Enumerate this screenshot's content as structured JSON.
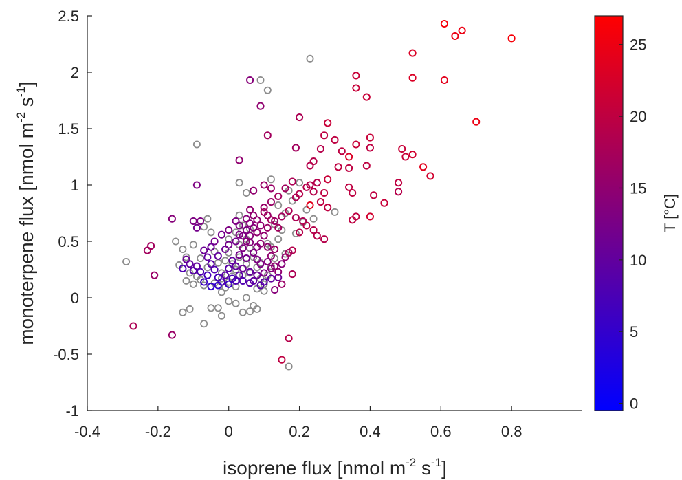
{
  "chart_data": {
    "type": "scatter",
    "title": "",
    "xlabel": {
      "main": "isoprene flux [nmol m",
      "sup1": "-2",
      "mid": " s",
      "sup2": "-1",
      "end": "]"
    },
    "ylabel": {
      "main": "monoterpene flux [nmol m",
      "sup1": "-2",
      "mid": " s",
      "sup2": "-1",
      "end": "]"
    },
    "xlim": [
      -0.4,
      1.0
    ],
    "ylim": [
      -1,
      2.5
    ],
    "xticks": [
      "-0.4",
      "-0.2",
      "0",
      "0.2",
      "0.4",
      "0.6",
      "0.8"
    ],
    "yticks": [
      "-1",
      "-0.5",
      "0",
      "0.5",
      "1",
      "1.5",
      "2",
      "2.5"
    ],
    "grid": false,
    "marker": "open-circle",
    "colorbar": {
      "label": "T [°C]",
      "range": [
        -0.5,
        27
      ],
      "ticks": [
        "0",
        "5",
        "10",
        "15",
        "20",
        "25"
      ],
      "colormap": [
        "#0000ff",
        "#ff0000"
      ]
    },
    "gray_color": "#8c8c8c",
    "points_no_temperature": [
      [
        -0.29,
        0.32
      ],
      [
        0.23,
        2.12
      ],
      [
        0.09,
        1.93
      ],
      [
        0.11,
        1.84
      ],
      [
        -0.09,
        1.36
      ],
      [
        0.17,
        -0.61
      ],
      [
        -0.07,
        -0.23
      ],
      [
        -0.02,
        -0.16
      ],
      [
        -0.13,
        -0.13
      ],
      [
        -0.11,
        -0.1
      ],
      [
        -0.05,
        -0.09
      ],
      [
        -0.03,
        -0.09
      ],
      [
        0.04,
        -0.13
      ],
      [
        0.06,
        -0.12
      ],
      [
        0.08,
        -0.1
      ],
      [
        0.07,
        -0.07
      ],
      [
        0.02,
        -0.05
      ],
      [
        0.0,
        -0.03
      ],
      [
        0.05,
        0.0
      ],
      [
        -0.15,
        0.5
      ],
      [
        -0.13,
        0.43
      ],
      [
        -0.1,
        0.47
      ],
      [
        -0.12,
        0.36
      ],
      [
        -0.14,
        0.29
      ],
      [
        -0.11,
        0.22
      ],
      [
        -0.12,
        0.15
      ],
      [
        -0.09,
        0.19
      ],
      [
        -0.1,
        0.12
      ],
      [
        -0.08,
        0.16
      ],
      [
        -0.07,
        0.11
      ],
      [
        -0.06,
        0.27
      ],
      [
        -0.08,
        0.35
      ],
      [
        -0.05,
        0.58
      ],
      [
        -0.06,
        0.7
      ],
      [
        -0.07,
        0.63
      ],
      [
        -0.04,
        0.41
      ],
      [
        -0.03,
        0.31
      ],
      [
        -0.02,
        0.22
      ],
      [
        -0.04,
        0.13
      ],
      [
        -0.02,
        0.05
      ],
      [
        -0.01,
        0.09
      ],
      [
        0.0,
        0.14
      ],
      [
        0.01,
        0.19
      ],
      [
        0.02,
        0.25
      ],
      [
        0.01,
        0.3
      ],
      [
        0.0,
        0.4
      ],
      [
        0.03,
        0.47
      ],
      [
        0.02,
        0.58
      ],
      [
        0.04,
        0.64
      ],
      [
        0.03,
        0.73
      ],
      [
        0.05,
        0.52
      ],
      [
        0.06,
        0.44
      ],
      [
        0.07,
        0.36
      ],
      [
        0.05,
        0.3
      ],
      [
        0.08,
        0.27
      ],
      [
        0.06,
        0.22
      ],
      [
        0.09,
        0.17
      ],
      [
        0.1,
        0.12
      ],
      [
        0.11,
        0.2
      ],
      [
        0.12,
        0.28
      ],
      [
        0.13,
        0.35
      ],
      [
        0.12,
        0.45
      ],
      [
        0.14,
        0.52
      ],
      [
        0.15,
        0.6
      ],
      [
        0.13,
        0.65
      ],
      [
        0.16,
        0.75
      ],
      [
        0.14,
        0.82
      ],
      [
        0.18,
        0.86
      ],
      [
        0.17,
        0.95
      ],
      [
        0.2,
        1.02
      ],
      [
        0.19,
        0.57
      ],
      [
        0.21,
        0.67
      ],
      [
        0.22,
        0.78
      ],
      [
        0.24,
        0.7
      ],
      [
        0.3,
        0.76
      ],
      [
        0.03,
        1.02
      ],
      [
        0.05,
        0.93
      ],
      [
        0.12,
        1.05
      ],
      [
        0.16,
        0.39
      ],
      [
        0.02,
        0.1
      ],
      [
        -0.01,
        0.33
      ],
      [
        0.04,
        0.2
      ],
      [
        0.0,
        0.52
      ],
      [
        0.08,
        0.08
      ],
      [
        0.1,
        0.06
      ],
      [
        -0.02,
        0.17
      ],
      [
        0.03,
        0.36
      ],
      [
        0.06,
        0.61
      ],
      [
        0.11,
        0.48
      ],
      [
        0.09,
        0.31
      ]
    ],
    "points": [
      [
        0.61,
        2.43,
        26
      ],
      [
        0.66,
        2.37,
        25
      ],
      [
        0.64,
        2.32,
        25
      ],
      [
        0.8,
        2.3,
        26
      ],
      [
        0.52,
        2.17,
        23
      ],
      [
        0.61,
        1.93,
        24
      ],
      [
        0.52,
        1.95,
        23
      ],
      [
        0.7,
        1.56,
        25
      ],
      [
        0.36,
        1.97,
        21
      ],
      [
        0.36,
        1.86,
        21
      ],
      [
        0.39,
        1.78,
        21
      ],
      [
        0.06,
        1.93,
        14
      ],
      [
        0.09,
        1.7,
        15
      ],
      [
        0.2,
        1.6,
        18
      ],
      [
        0.28,
        1.55,
        21
      ],
      [
        0.3,
        1.4,
        20
      ],
      [
        0.27,
        1.44,
        20
      ],
      [
        0.26,
        1.32,
        19
      ],
      [
        0.11,
        1.44,
        17
      ],
      [
        0.19,
        1.33,
        17
      ],
      [
        0.34,
        1.25,
        23
      ],
      [
        0.32,
        1.3,
        20
      ],
      [
        0.36,
        1.36,
        21
      ],
      [
        0.4,
        1.42,
        21
      ],
      [
        0.4,
        1.33,
        20
      ],
      [
        0.49,
        1.32,
        21
      ],
      [
        0.5,
        1.25,
        21
      ],
      [
        0.52,
        1.27,
        22
      ],
      [
        0.55,
        1.16,
        24
      ],
      [
        0.57,
        1.08,
        22
      ],
      [
        0.03,
        1.22,
        15
      ],
      [
        0.23,
        1.17,
        19
      ],
      [
        0.24,
        1.21,
        19
      ],
      [
        0.31,
        1.16,
        20
      ],
      [
        0.28,
        1.05,
        21
      ],
      [
        0.34,
        1.15,
        20
      ],
      [
        0.39,
        1.17,
        20
      ],
      [
        0.48,
        1.02,
        20
      ],
      [
        0.48,
        0.94,
        19
      ],
      [
        0.41,
        0.91,
        20
      ],
      [
        0.44,
        0.84,
        21
      ],
      [
        0.35,
        0.93,
        20
      ],
      [
        0.34,
        0.98,
        20
      ],
      [
        0.35,
        0.69,
        20
      ],
      [
        0.36,
        0.72,
        20
      ],
      [
        0.4,
        0.72,
        22
      ],
      [
        -0.09,
        1.0,
        13
      ],
      [
        0.1,
        1.0,
        16
      ],
      [
        0.12,
        0.97,
        16
      ],
      [
        0.07,
        0.95,
        15
      ],
      [
        0.16,
        0.97,
        17
      ],
      [
        0.18,
        1.03,
        18
      ],
      [
        0.19,
        0.89,
        18
      ],
      [
        0.2,
        0.92,
        19
      ],
      [
        0.22,
        0.98,
        19
      ],
      [
        0.23,
        1.0,
        19
      ],
      [
        0.24,
        0.94,
        19
      ],
      [
        0.25,
        1.02,
        19
      ],
      [
        0.27,
        0.93,
        20
      ],
      [
        0.26,
        0.85,
        20
      ],
      [
        0.28,
        0.8,
        20
      ],
      [
        0.23,
        0.82,
        24
      ],
      [
        0.12,
        0.85,
        16
      ],
      [
        0.14,
        0.9,
        17
      ],
      [
        0.1,
        0.8,
        16
      ],
      [
        0.06,
        0.78,
        15
      ],
      [
        0.07,
        0.73,
        15
      ],
      [
        0.05,
        0.7,
        14
      ],
      [
        0.08,
        0.69,
        15
      ],
      [
        0.11,
        0.73,
        16
      ],
      [
        0.13,
        0.68,
        16
      ],
      [
        0.15,
        0.72,
        17
      ],
      [
        0.17,
        0.77,
        18
      ],
      [
        0.19,
        0.71,
        18
      ],
      [
        0.21,
        0.68,
        18
      ],
      [
        0.22,
        0.64,
        19
      ],
      [
        0.2,
        0.58,
        19
      ],
      [
        0.24,
        0.6,
        19
      ],
      [
        0.25,
        0.55,
        19
      ],
      [
        0.27,
        0.52,
        19
      ],
      [
        0.18,
        0.42,
        19
      ],
      [
        0.18,
        0.21,
        18
      ],
      [
        0.02,
        0.68,
        13
      ],
      [
        0.03,
        0.64,
        13
      ],
      [
        0.0,
        0.6,
        13
      ],
      [
        -0.02,
        0.56,
        12
      ],
      [
        -0.04,
        0.5,
        12
      ],
      [
        -0.05,
        0.45,
        11
      ],
      [
        -0.07,
        0.42,
        11
      ],
      [
        -0.08,
        0.68,
        13
      ],
      [
        -0.1,
        0.68,
        13
      ],
      [
        -0.09,
        0.62,
        12
      ],
      [
        -0.16,
        0.7,
        14
      ],
      [
        -0.12,
        0.34,
        11
      ],
      [
        -0.09,
        0.28,
        10
      ],
      [
        -0.23,
        0.42,
        17
      ],
      [
        -0.22,
        0.46,
        17
      ],
      [
        -0.21,
        0.2,
        16
      ],
      [
        -0.27,
        -0.25,
        18
      ],
      [
        -0.16,
        -0.33,
        16
      ],
      [
        0.15,
        -0.55,
        20
      ],
      [
        0.17,
        -0.36,
        19
      ],
      [
        0.15,
        0.12,
        16
      ],
      [
        0.14,
        0.23,
        15
      ],
      [
        0.13,
        0.28,
        15
      ],
      [
        0.12,
        0.37,
        15
      ],
      [
        0.13,
        0.43,
        16
      ],
      [
        0.11,
        0.45,
        15
      ],
      [
        0.09,
        0.48,
        15
      ],
      [
        0.1,
        0.55,
        15
      ],
      [
        0.08,
        0.58,
        15
      ],
      [
        0.11,
        0.62,
        16
      ],
      [
        0.09,
        0.64,
        15
      ],
      [
        0.07,
        0.62,
        14
      ],
      [
        0.06,
        0.55,
        14
      ],
      [
        0.05,
        0.5,
        14
      ],
      [
        0.04,
        0.44,
        13
      ],
      [
        0.03,
        0.38,
        12
      ],
      [
        0.05,
        0.35,
        12
      ],
      [
        0.07,
        0.4,
        13
      ],
      [
        0.08,
        0.34,
        13
      ],
      [
        0.09,
        0.3,
        13
      ],
      [
        0.11,
        0.32,
        14
      ],
      [
        0.12,
        0.26,
        14
      ],
      [
        0.1,
        0.22,
        13
      ],
      [
        0.08,
        0.2,
        11
      ],
      [
        0.07,
        0.15,
        10
      ],
      [
        0.06,
        0.13,
        9
      ],
      [
        0.04,
        0.15,
        8
      ],
      [
        0.03,
        0.2,
        9
      ],
      [
        0.02,
        0.28,
        10
      ],
      [
        0.01,
        0.33,
        10
      ],
      [
        0.0,
        0.26,
        9
      ],
      [
        -0.01,
        0.2,
        9
      ],
      [
        -0.02,
        0.14,
        8
      ],
      [
        -0.03,
        0.18,
        7
      ],
      [
        -0.04,
        0.25,
        8
      ],
      [
        -0.05,
        0.3,
        9
      ],
      [
        -0.06,
        0.36,
        10
      ],
      [
        -0.03,
        0.37,
        10
      ],
      [
        -0.01,
        0.43,
        11
      ],
      [
        0.0,
        0.47,
        12
      ],
      [
        0.02,
        0.5,
        12
      ],
      [
        0.04,
        0.55,
        13
      ],
      [
        0.05,
        0.6,
        13
      ],
      [
        0.06,
        0.66,
        14
      ],
      [
        -0.06,
        0.2,
        7
      ],
      [
        -0.07,
        0.14,
        6
      ],
      [
        -0.05,
        0.1,
        5
      ],
      [
        -0.03,
        0.11,
        5
      ],
      [
        -0.1,
        0.24,
        9
      ],
      [
        -0.11,
        0.3,
        10
      ],
      [
        0.09,
        0.11,
        9
      ],
      [
        0.1,
        0.14,
        9
      ],
      [
        0.12,
        0.17,
        10
      ],
      [
        0.14,
        0.18,
        11
      ],
      [
        0.15,
        0.3,
        14
      ],
      [
        0.16,
        0.36,
        15
      ],
      [
        0.17,
        0.4,
        17
      ],
      [
        0.13,
        0.07,
        14
      ],
      [
        0.1,
        0.76,
        17
      ],
      [
        0.12,
        0.69,
        17
      ],
      [
        0.14,
        0.62,
        17
      ],
      [
        0.01,
        0.17,
        7
      ],
      [
        0.0,
        0.12,
        6
      ],
      [
        0.02,
        0.15,
        8
      ],
      [
        0.06,
        0.23,
        10
      ],
      [
        0.04,
        0.26,
        11
      ],
      [
        0.08,
        0.45,
        14
      ],
      [
        0.06,
        0.49,
        14
      ],
      [
        0.03,
        0.56,
        13
      ],
      [
        -0.13,
        0.26,
        8
      ],
      [
        -0.08,
        0.23,
        8
      ]
    ]
  }
}
